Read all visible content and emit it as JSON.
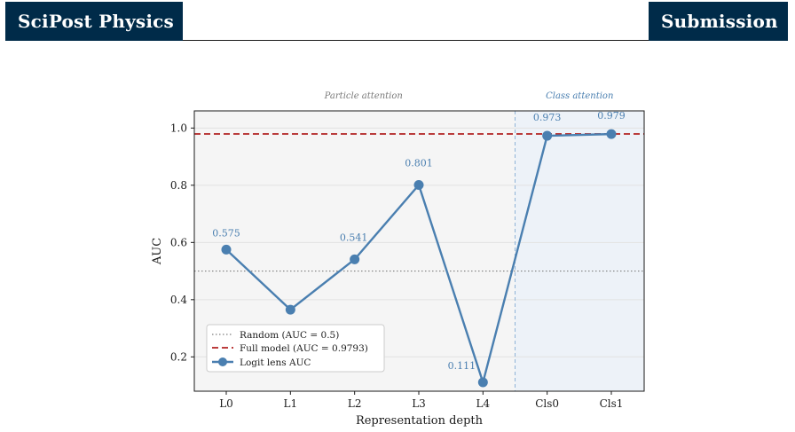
{
  "header": {
    "journal": "SciPost Physics",
    "badge": "Submission"
  },
  "chart_data": {
    "type": "line",
    "categories": [
      "L0",
      "L1",
      "L2",
      "L3",
      "L4",
      "Cls0",
      "Cls1"
    ],
    "series": [
      {
        "name": "Logit lens AUC",
        "values": [
          0.575,
          0.365,
          0.541,
          0.801,
          0.111,
          0.973,
          0.979
        ],
        "color": "#4a7fb0"
      }
    ],
    "data_labels": [
      "0.575",
      "",
      "0.541",
      "0.801",
      "0.111",
      "0.973",
      "0.979"
    ],
    "reference_lines": [
      {
        "name": "Random  (AUC = 0.5)",
        "value": 0.5,
        "style": "dotted",
        "color": "#7f7f7f"
      },
      {
        "name": "Full model  (AUC = 0.9793)",
        "value": 0.9793,
        "style": "dashed",
        "color": "#b22222"
      }
    ],
    "regions": [
      {
        "label": "Particle attention",
        "from": "L0",
        "to": "L4",
        "color": "#7a7a7a"
      },
      {
        "label": "Class attention",
        "from": "Cls0",
        "to": "Cls1",
        "color": "#4a7fb0"
      }
    ],
    "xlabel": "Representation depth",
    "ylabel": "AUC",
    "ylim": [
      0.08,
      1.06
    ],
    "yticks": [
      0.2,
      0.4,
      0.6,
      0.8,
      1.0
    ],
    "ytick_labels": [
      "0.2",
      "0.4",
      "0.6",
      "0.8",
      "1.0"
    ],
    "grid": true,
    "legend_position": "lower-left"
  }
}
